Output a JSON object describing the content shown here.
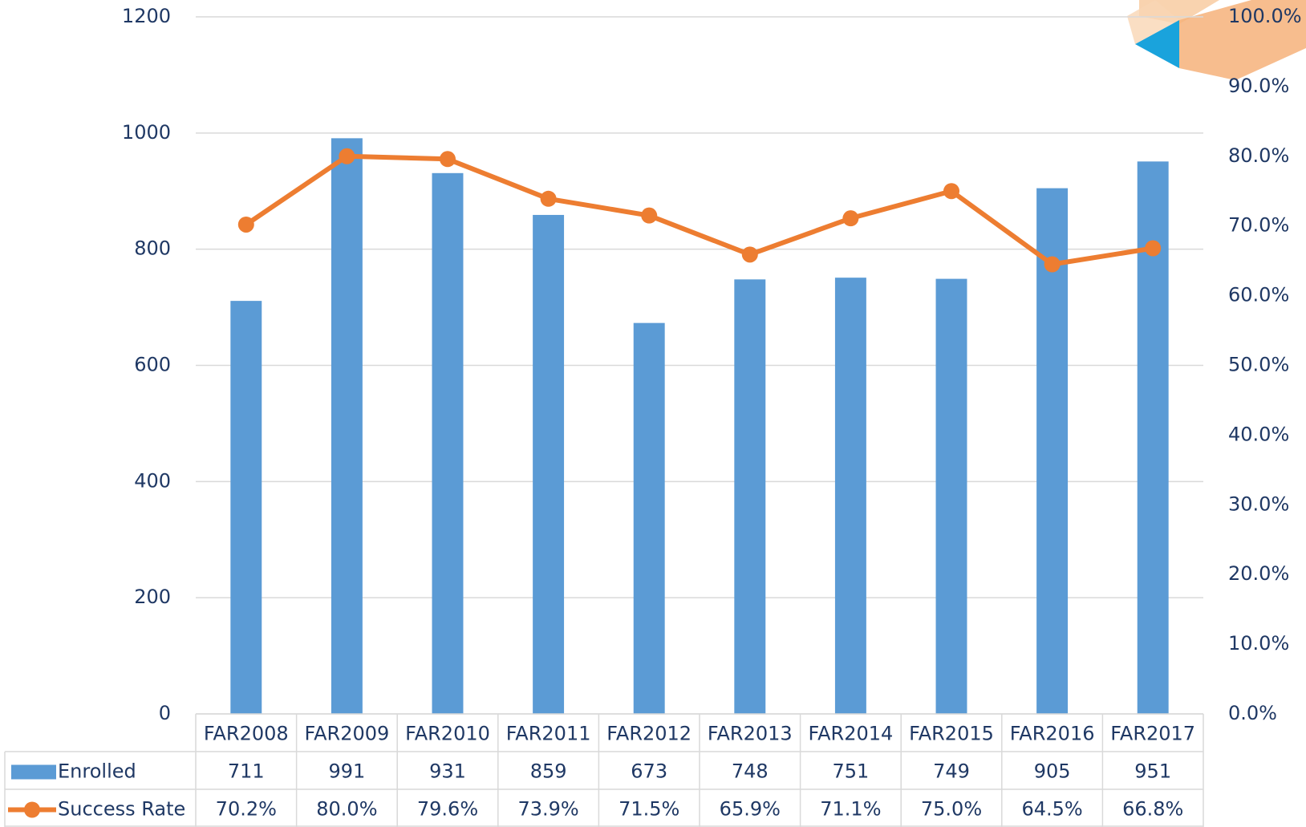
{
  "chart_data": {
    "type": "bar",
    "categories": [
      "FAR2008",
      "FAR2009",
      "FAR2010",
      "FAR2011",
      "FAR2012",
      "FAR2013",
      "FAR2014",
      "FAR2015",
      "FAR2016",
      "FAR2017"
    ],
    "series": [
      {
        "name": "Enrolled",
        "type": "bar",
        "color": "#5b9bd5",
        "values": [
          711,
          991,
          931,
          859,
          673,
          748,
          751,
          749,
          905,
          951
        ]
      },
      {
        "name": "Success Rate",
        "type": "line",
        "axis": "y2",
        "color": "#ed7d31",
        "values": [
          70.2,
          80.0,
          79.6,
          73.9,
          71.5,
          65.9,
          71.1,
          75.0,
          64.5,
          66.8
        ],
        "value_labels": [
          "70.2%",
          "80.0%",
          "79.6%",
          "73.9%",
          "71.5%",
          "65.9%",
          "71.1%",
          "75.0%",
          "64.5%",
          "66.8%"
        ]
      }
    ],
    "ylim": [
      0,
      1200
    ],
    "yticks": [
      0,
      200,
      400,
      600,
      800,
      1000,
      1200
    ],
    "y2lim": [
      0,
      100
    ],
    "y2ticks": [
      {
        "value": 0,
        "label": "0.0%"
      },
      {
        "value": 10,
        "label": "10.0%"
      },
      {
        "value": 20,
        "label": "20.0%"
      },
      {
        "value": 30,
        "label": "30.0%"
      },
      {
        "value": 40,
        "label": "40.0%"
      },
      {
        "value": 50,
        "label": "50.0%"
      },
      {
        "value": 60,
        "label": "60.0%"
      },
      {
        "value": 70,
        "label": "70.0%"
      },
      {
        "value": 80,
        "label": "80.0%"
      },
      {
        "value": 90,
        "label": "90.0%"
      },
      {
        "value": 100,
        "label": "100.0%"
      }
    ],
    "grid": true,
    "data_table": true
  }
}
